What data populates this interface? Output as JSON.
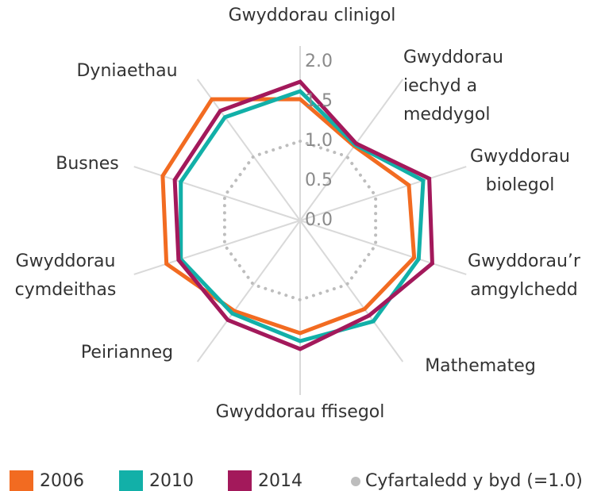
{
  "chart_data": {
    "type": "radar",
    "categories": [
      "Gwyddorau clinigol",
      "Gwyddorau iechyd a meddygol",
      "Gwyddorau biolegol",
      "Gwyddorau’r amgylchedd",
      "Mathemateg",
      "Gwyddorau ffisegol",
      "Peirianneg",
      "Gwyddorau cymdeithas",
      "Busnes",
      "Dyniaethau"
    ],
    "series": [
      {
        "name": "2006",
        "color": "#f26b21",
        "values": [
          1.53,
          1.16,
          1.44,
          1.51,
          1.38,
          1.42,
          1.41,
          1.77,
          1.82,
          1.89
        ]
      },
      {
        "name": "2010",
        "color": "#12b0a8",
        "values": [
          1.63,
          1.18,
          1.63,
          1.57,
          1.57,
          1.52,
          1.45,
          1.58,
          1.58,
          1.61
        ]
      },
      {
        "name": "2014",
        "color": "#a3195b",
        "values": [
          1.75,
          1.2,
          1.71,
          1.75,
          1.48,
          1.62,
          1.55,
          1.61,
          1.66,
          1.71
        ]
      }
    ],
    "reference": {
      "name": "Cyfartaledd y byd (=1.0)",
      "value": 1,
      "color": "#bdbdbd"
    },
    "rlim": [
      0,
      2.2
    ],
    "rticks": [
      {
        "value": 0,
        "label": "0.0"
      },
      0.5,
      {
        "value": 1,
        "label": "1.0"
      },
      1.5,
      {
        "value": 2,
        "label": "2.0"
      }
    ]
  }
}
